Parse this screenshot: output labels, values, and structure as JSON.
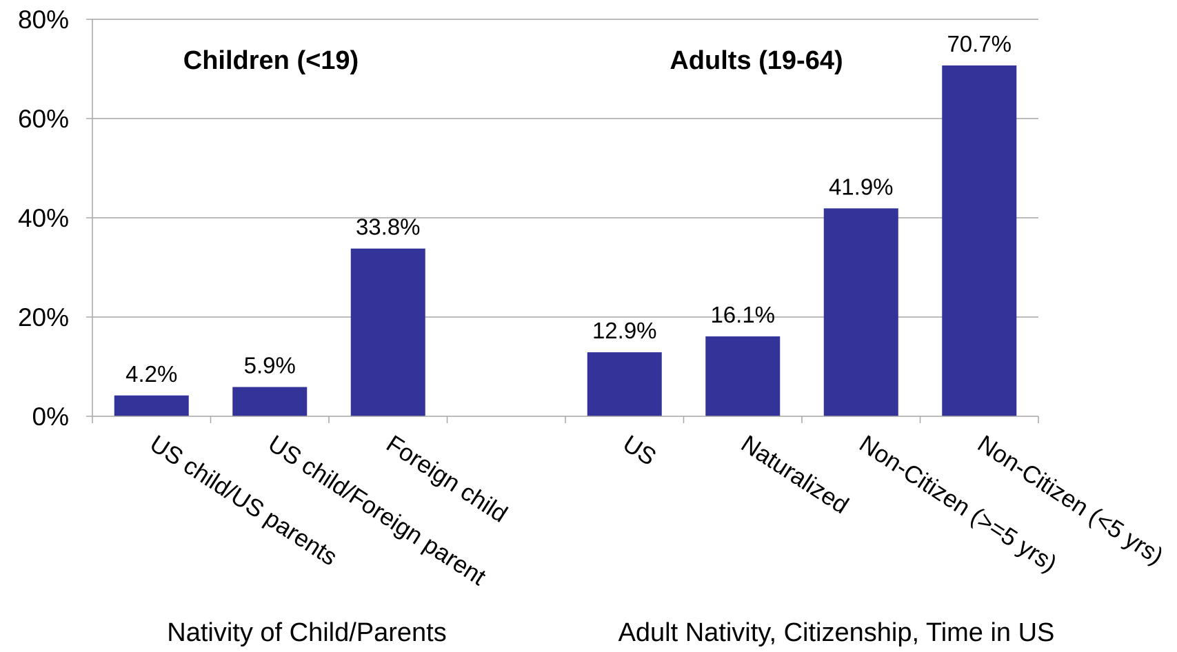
{
  "chart_data": {
    "type": "bar",
    "categories": [
      "US child/US parents",
      "US child/Foreign parent",
      "Foreign child",
      "",
      "US",
      "Naturalized",
      "Non-Citizen (>=5 yrs)",
      "Non-Citizen (<5 yrs)"
    ],
    "values": [
      4.2,
      5.9,
      33.8,
      null,
      12.9,
      16.1,
      41.9,
      70.7
    ],
    "data_labels": [
      "4.2%",
      "5.9%",
      "33.8%",
      "",
      "12.9%",
      "16.1%",
      "41.9%",
      "70.7%"
    ],
    "ylim": [
      0,
      80
    ],
    "yticks": [
      0,
      20,
      40,
      60,
      80
    ],
    "ytick_labels": [
      "0%",
      "20%",
      "40%",
      "60%",
      "80%"
    ],
    "grid": true,
    "colors": {
      "bar": "#333399",
      "grid": "#a6a6a6",
      "axis": "#a6a6a6"
    },
    "groups": [
      {
        "title": "Children (<19)",
        "xlabel": "Nativity of Child/Parents"
      },
      {
        "title": "Adults (19-64)",
        "xlabel": "Adult Nativity, Citizenship, Time in US"
      }
    ]
  }
}
